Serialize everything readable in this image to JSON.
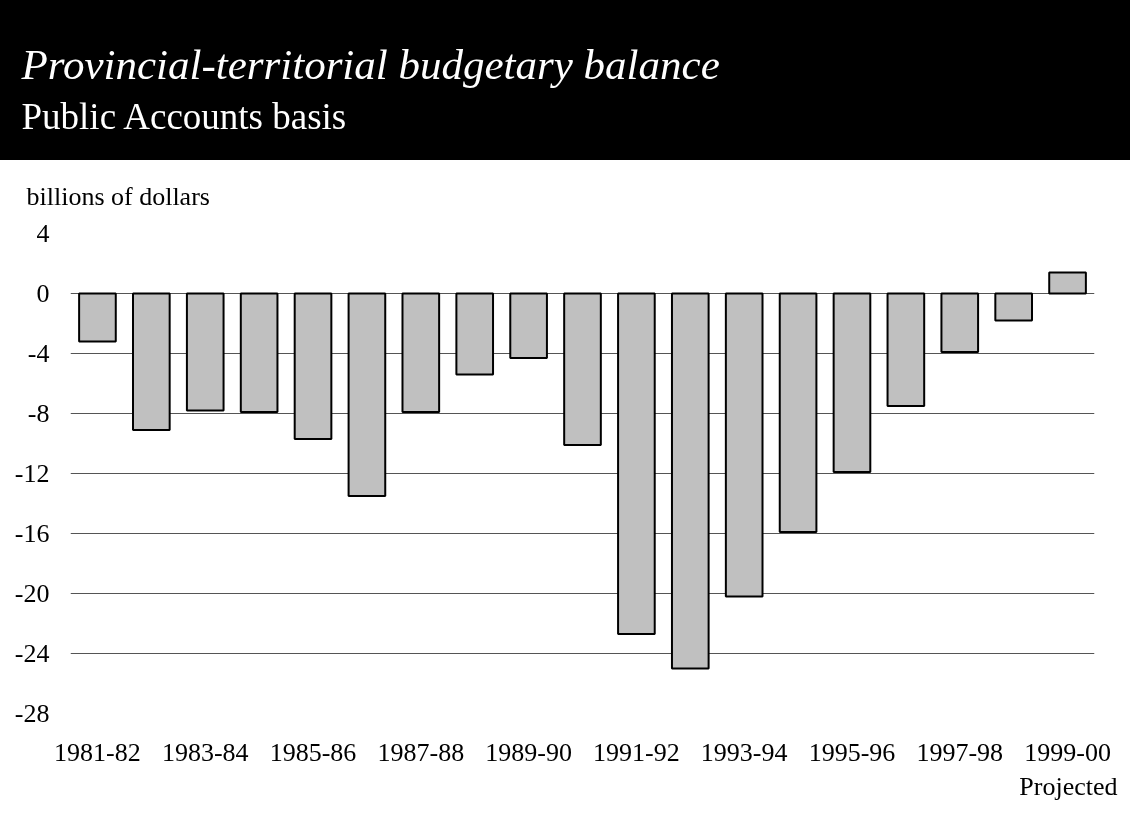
{
  "chart_data": {
    "type": "bar",
    "title": "Provincial-territorial budgetary balance",
    "subtitle": "Public Accounts basis",
    "ylabel": "billions of dollars",
    "categories": [
      "1981-82",
      null,
      "1983-84",
      null,
      "1985-86",
      null,
      "1987-88",
      null,
      "1989-90",
      null,
      "1991-92",
      null,
      "1993-94",
      null,
      "1995-96",
      null,
      "1997-98",
      null,
      "1999-00"
    ],
    "values": [
      -3.2,
      -9.1,
      -7.8,
      -7.9,
      -9.7,
      -13.5,
      -7.9,
      -5.4,
      -4.3,
      -10.1,
      -22.7,
      -25.0,
      -20.2,
      -15.9,
      -11.9,
      -7.5,
      -3.9,
      -1.8,
      1.4
    ],
    "color": "#c0c0c0",
    "ylim": [
      -28,
      4
    ],
    "yticks": [
      -28,
      -24,
      -20,
      -16,
      -12,
      -8,
      -4,
      0,
      4
    ],
    "grid": "y",
    "annotations": [
      "Projected"
    ]
  }
}
